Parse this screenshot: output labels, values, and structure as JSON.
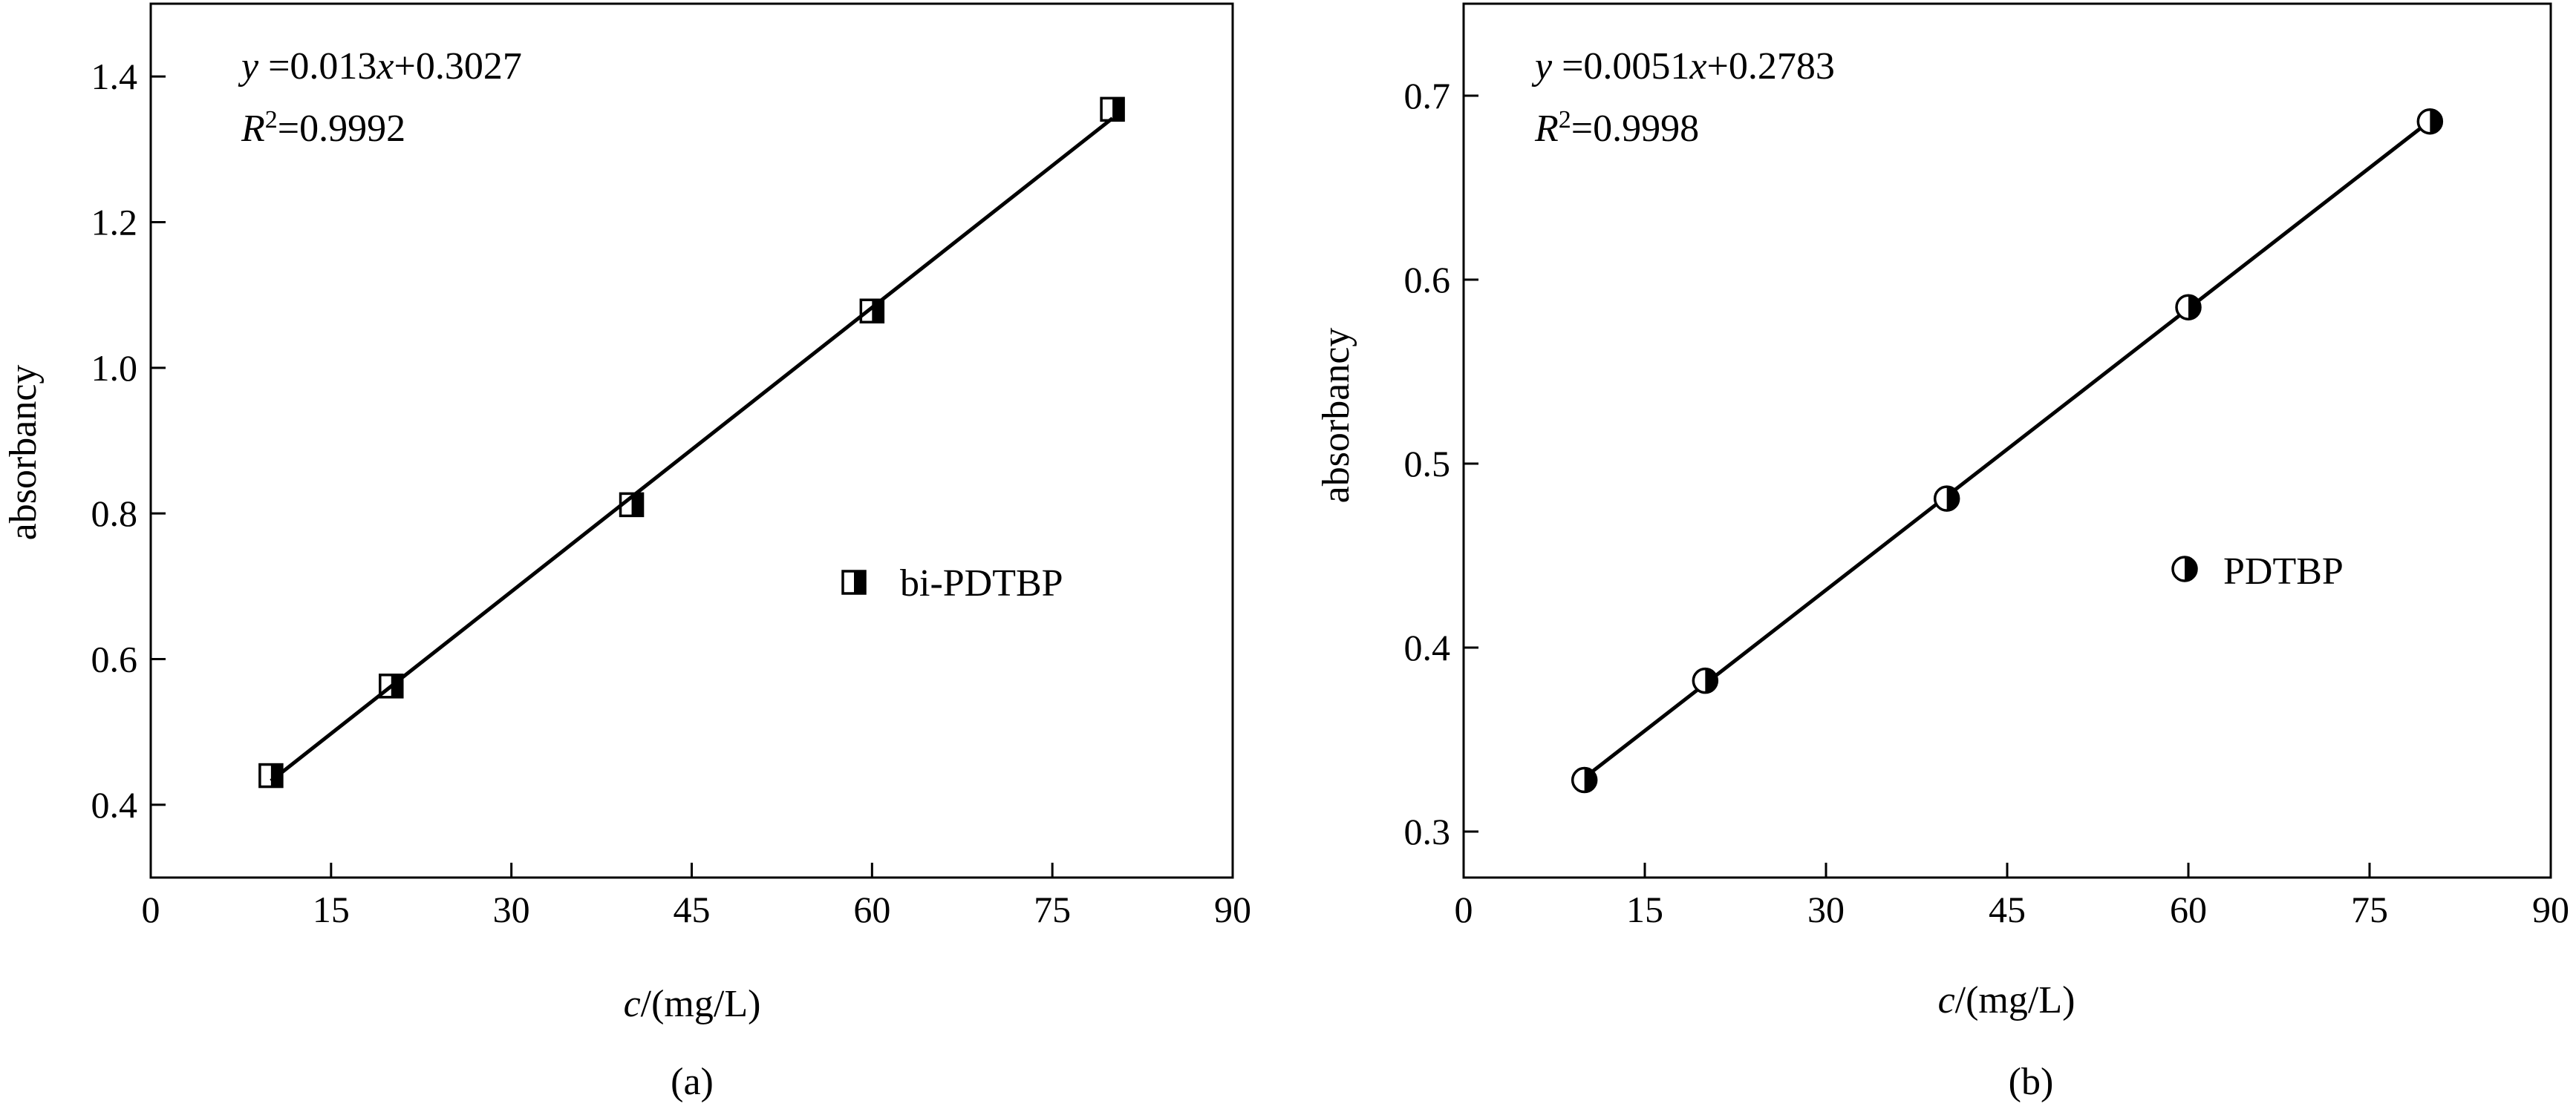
{
  "chart_data": [
    {
      "type": "scatter",
      "panel_label": "(a)",
      "xlabel_var": "c",
      "xlabel_unit": "/(mg/L)",
      "ylabel": "absorbancy",
      "xlim": [
        0,
        90
      ],
      "ylim": [
        0.3,
        1.5
      ],
      "xticks": [
        0,
        15,
        30,
        45,
        60,
        75,
        90
      ],
      "xtick_labels": [
        "0",
        "15",
        "30",
        "45",
        "60",
        "75",
        "90"
      ],
      "yticks": [
        0.4,
        0.6,
        0.8,
        1.0,
        1.2,
        1.4
      ],
      "ytick_labels": [
        "0.4",
        "0.6",
        "0.8",
        "1.0",
        "1.2",
        "1.4"
      ],
      "marker": "half-filled-square",
      "series": [
        {
          "name": "bi-PDTBP",
          "x": [
            10,
            20,
            40,
            60,
            80
          ],
          "y": [
            0.44,
            0.563,
            0.812,
            1.078,
            1.355
          ]
        }
      ],
      "fit": {
        "slope": 0.013,
        "intercept": 0.3027,
        "x_range": [
          10,
          80
        ],
        "eq_y": "y",
        "eq_rhs": " =0.013",
        "eq_x": "x",
        "eq_tail": "+0.3027",
        "r2_r": "R",
        "r2_sup": "2",
        "r2_val": "=0.9992"
      },
      "legend_position": "middle-right",
      "grid": false
    },
    {
      "type": "scatter",
      "panel_label": "(b)",
      "xlabel_var": "c",
      "xlabel_unit": "/(mg/L)",
      "ylabel": "absorbancy",
      "xlim": [
        0,
        90
      ],
      "ylim": [
        0.275,
        0.75
      ],
      "xticks": [
        0,
        15,
        30,
        45,
        60,
        75,
        90
      ],
      "xtick_labels": [
        "0",
        "15",
        "30",
        "45",
        "60",
        "75",
        "90"
      ],
      "yticks": [
        0.3,
        0.4,
        0.5,
        0.6,
        0.7
      ],
      "ytick_labels": [
        "0.3",
        "0.4",
        "0.5",
        "0.6",
        "0.7"
      ],
      "marker": "half-filled-circle",
      "series": [
        {
          "name": "PDTBP",
          "x": [
            10,
            20,
            40,
            60,
            80
          ],
          "y": [
            0.328,
            0.382,
            0.481,
            0.585,
            0.686
          ]
        }
      ],
      "fit": {
        "slope": 0.0051,
        "intercept": 0.2783,
        "x_range": [
          10,
          80
        ],
        "eq_y": "y",
        "eq_rhs": " =0.0051",
        "eq_x": "x",
        "eq_tail": "+0.2783",
        "r2_r": "R",
        "r2_sup": "2",
        "r2_val": "=0.9998"
      },
      "legend_position": "middle-right",
      "grid": false
    }
  ]
}
